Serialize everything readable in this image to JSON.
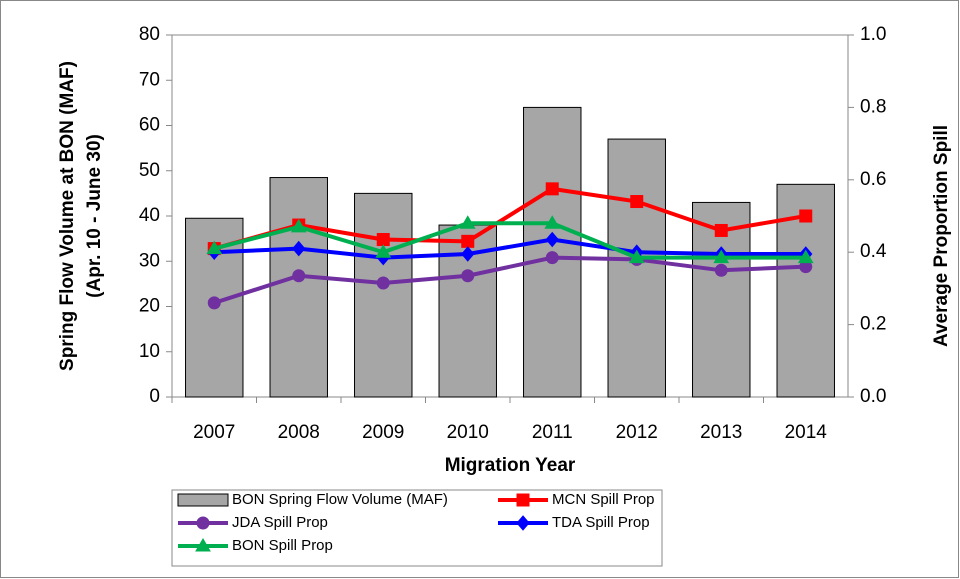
{
  "chart_data": {
    "type": "bar",
    "xlabel": "Migration Year",
    "ylabel": [
      "Spring Flow Volume at BON (MAF)",
      "(Apr. 10 - June 30)"
    ],
    "y2label": "Average Proportion Spill",
    "categories": [
      "2007",
      "2008",
      "2009",
      "2010",
      "2011",
      "2012",
      "2013",
      "2014"
    ],
    "ylim": [
      0,
      80
    ],
    "yticks": [
      0,
      10,
      20,
      30,
      40,
      50,
      60,
      70,
      80
    ],
    "y2lim": [
      0,
      1
    ],
    "y2ticks": [
      {
        "value": 0,
        "label": "0.0"
      },
      {
        "value": 0.2,
        "label": "0.2"
      },
      {
        "value": 0.4,
        "label": "0.4"
      },
      {
        "value": 0.6,
        "label": "0.6"
      },
      {
        "value": 0.8,
        "label": "0.8"
      },
      {
        "value": 1,
        "label": "1.0"
      }
    ],
    "series": [
      {
        "name": "BON Spring Flow Volume (MAF)",
        "type": "bar",
        "color": "#a6a6a6",
        "values": [
          39.5,
          48.5,
          45,
          38,
          64,
          57,
          43,
          47
        ]
      },
      {
        "name": "MCN Spill Prop",
        "type": "line",
        "axis": "y2",
        "marker": "square",
        "color": "#ff0000",
        "values": [
          0.41,
          0.475,
          0.435,
          0.43,
          0.575,
          0.54,
          0.46,
          0.5
        ]
      },
      {
        "name": "JDA Spill Prop",
        "type": "line",
        "axis": "y2",
        "marker": "circle",
        "color": "#7030a0",
        "values": [
          0.26,
          0.335,
          0.315,
          0.335,
          0.385,
          0.38,
          0.35,
          0.36
        ]
      },
      {
        "name": "TDA Spill Prop",
        "type": "line",
        "axis": "y2",
        "marker": "diamond",
        "color": "#0000ff",
        "values": [
          0.4,
          0.41,
          0.385,
          0.395,
          0.435,
          0.4,
          0.395,
          0.395
        ]
      },
      {
        "name": "BON Spill Prop",
        "type": "line",
        "axis": "y2",
        "marker": "triangle",
        "color": "#00b050",
        "values": [
          0.41,
          0.47,
          0.4,
          0.48,
          0.48,
          0.385,
          0.385,
          0.385
        ]
      }
    ]
  }
}
